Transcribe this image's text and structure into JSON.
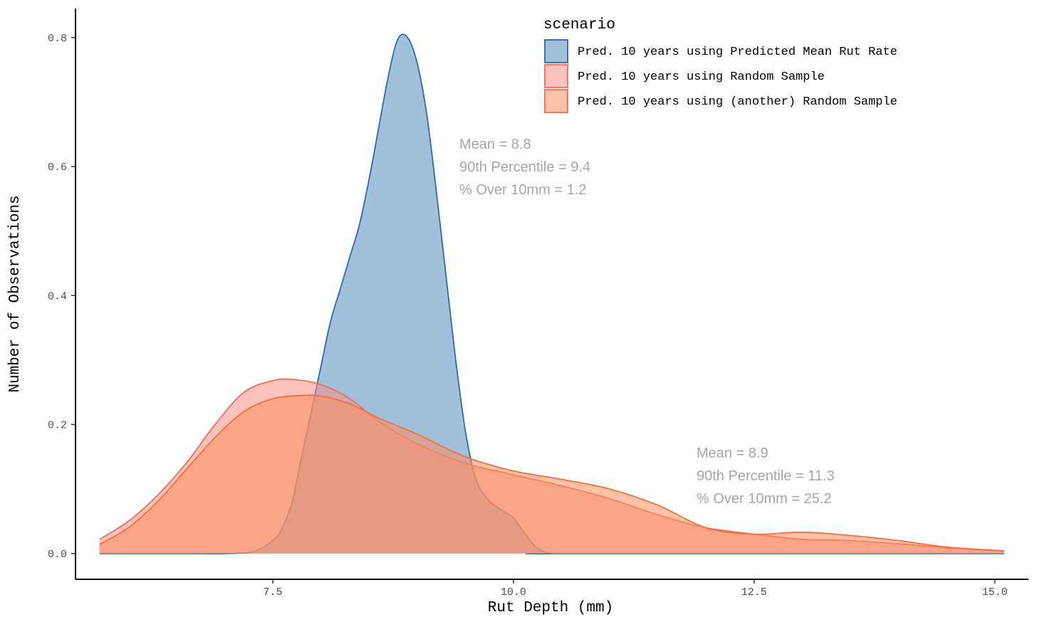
{
  "chart_data": {
    "type": "area",
    "xlabel": "Rut Depth (mm)",
    "ylabel": "Number of Observations",
    "xlim": [
      5.45,
      15.35
    ],
    "ylim": [
      -0.04,
      0.845
    ],
    "x_ticks": [
      7.5,
      10.0,
      12.5,
      15.0
    ],
    "x_tick_labels": [
      "7.5",
      "10.0",
      "12.5",
      "15.0"
    ],
    "y_ticks": [
      0.0,
      0.2,
      0.4,
      0.6,
      0.8
    ],
    "y_tick_labels": [
      "0.0",
      "0.2",
      "0.4",
      "0.6",
      "0.8"
    ],
    "grid": false,
    "legend": {
      "title": "scenario",
      "position": "top-right"
    },
    "series": [
      {
        "name": "Pred. 10 years using Predicted Mean Rut Rate",
        "fill": "#6b9ac4",
        "stroke": "#2e6aa8",
        "opacity": 0.62,
        "x": [
          5.7,
          6.5,
          7.0,
          7.3,
          7.5,
          7.6,
          7.7,
          7.8,
          7.9,
          8.0,
          8.1,
          8.2,
          8.3,
          8.4,
          8.5,
          8.6,
          8.7,
          8.8,
          8.9,
          9.0,
          9.1,
          9.2,
          9.3,
          9.4,
          9.5,
          9.6,
          9.7,
          9.8,
          9.9,
          10.0,
          10.1,
          10.2,
          10.3,
          10.4,
          10.5,
          15.1
        ],
        "y": [
          0.0,
          0.0,
          0.0,
          0.003,
          0.02,
          0.04,
          0.08,
          0.15,
          0.22,
          0.29,
          0.36,
          0.41,
          0.46,
          0.51,
          0.58,
          0.66,
          0.74,
          0.798,
          0.8,
          0.76,
          0.68,
          0.56,
          0.43,
          0.3,
          0.19,
          0.12,
          0.09,
          0.075,
          0.065,
          0.055,
          0.035,
          0.015,
          0.004,
          0.0,
          0.0,
          0.0
        ]
      },
      {
        "name": "Pred. 10 years using Random Sample",
        "fill": "#f88f84",
        "stroke": "#e8705e",
        "opacity": 0.55,
        "x": [
          5.7,
          6.0,
          6.3,
          6.6,
          6.9,
          7.2,
          7.5,
          7.7,
          8.0,
          8.3,
          8.6,
          9.0,
          9.5,
          10.0,
          10.5,
          11.0,
          11.5,
          12.0,
          12.5,
          13.0,
          13.5,
          14.0,
          14.5,
          15.1
        ],
        "y": [
          0.022,
          0.05,
          0.09,
          0.14,
          0.2,
          0.25,
          0.268,
          0.27,
          0.262,
          0.24,
          0.205,
          0.17,
          0.14,
          0.122,
          0.105,
          0.085,
          0.06,
          0.04,
          0.03,
          0.022,
          0.02,
          0.015,
          0.009,
          0.004
        ]
      },
      {
        "name": "Pred. 10 years using (another) Random Sample",
        "fill": "#fb8e5e",
        "stroke": "#f07040",
        "opacity": 0.55,
        "x": [
          5.7,
          6.0,
          6.3,
          6.6,
          6.9,
          7.2,
          7.5,
          7.8,
          8.0,
          8.3,
          8.6,
          9.0,
          9.5,
          10.0,
          10.5,
          11.0,
          11.5,
          12.0,
          12.5,
          13.0,
          13.5,
          14.0,
          14.5,
          15.1
        ],
        "y": [
          0.014,
          0.04,
          0.08,
          0.13,
          0.18,
          0.22,
          0.24,
          0.245,
          0.244,
          0.232,
          0.21,
          0.185,
          0.15,
          0.128,
          0.115,
          0.1,
          0.075,
          0.04,
          0.03,
          0.033,
          0.028,
          0.02,
          0.01,
          0.004
        ]
      }
    ],
    "annotations": [
      {
        "lines": [
          "Mean = 8.8",
          "90th Percentile = 9.4",
          "% Over 10mm = 1.2"
        ]
      },
      {
        "lines": [
          "Mean = 8.9",
          "90th Percentile = 11.3",
          "% Over 10mm = 25.2"
        ]
      }
    ],
    "annotation_color": "#a6a6a6",
    "axis_color": "#000000",
    "tick_label_color": "#4d4d4d"
  }
}
